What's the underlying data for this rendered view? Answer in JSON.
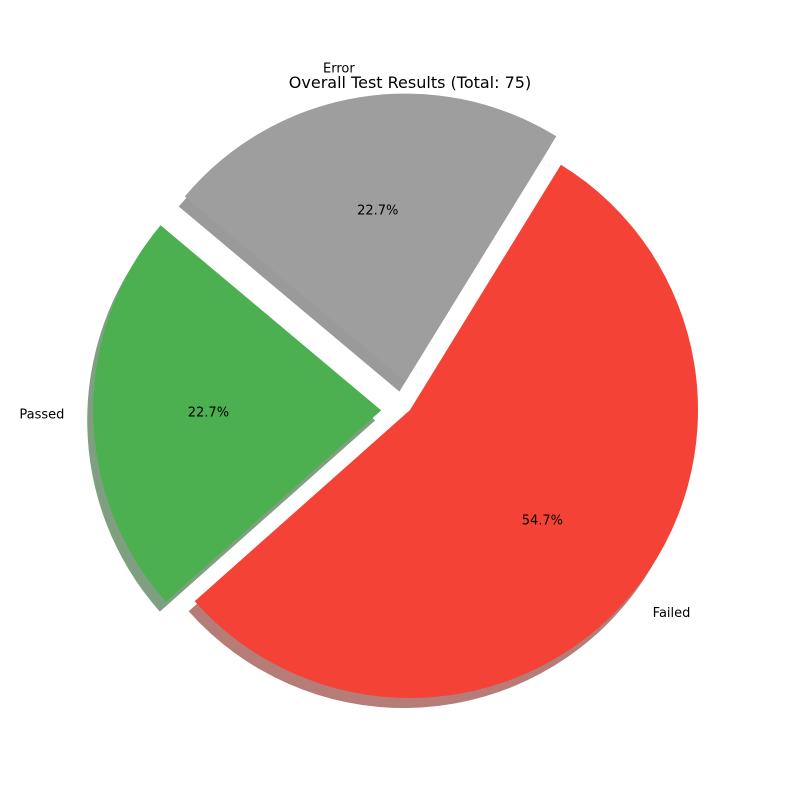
{
  "chart_data": {
    "type": "pie",
    "title": "Overall Test Results (Total: 75)",
    "total": 75,
    "slices": [
      {
        "label": "Passed",
        "value": 17,
        "percent_label": "22.7%",
        "color": "#4caf50",
        "exploded": true
      },
      {
        "label": "Failed",
        "value": 41,
        "percent_label": "54.7%",
        "color": "#f44336",
        "exploded": false
      },
      {
        "label": "Error",
        "value": 17,
        "percent_label": "22.7%",
        "color": "#9e9e9e",
        "exploded": true
      }
    ],
    "start_angle_deg": 140,
    "direction": "counterclockwise",
    "shadow": true
  }
}
